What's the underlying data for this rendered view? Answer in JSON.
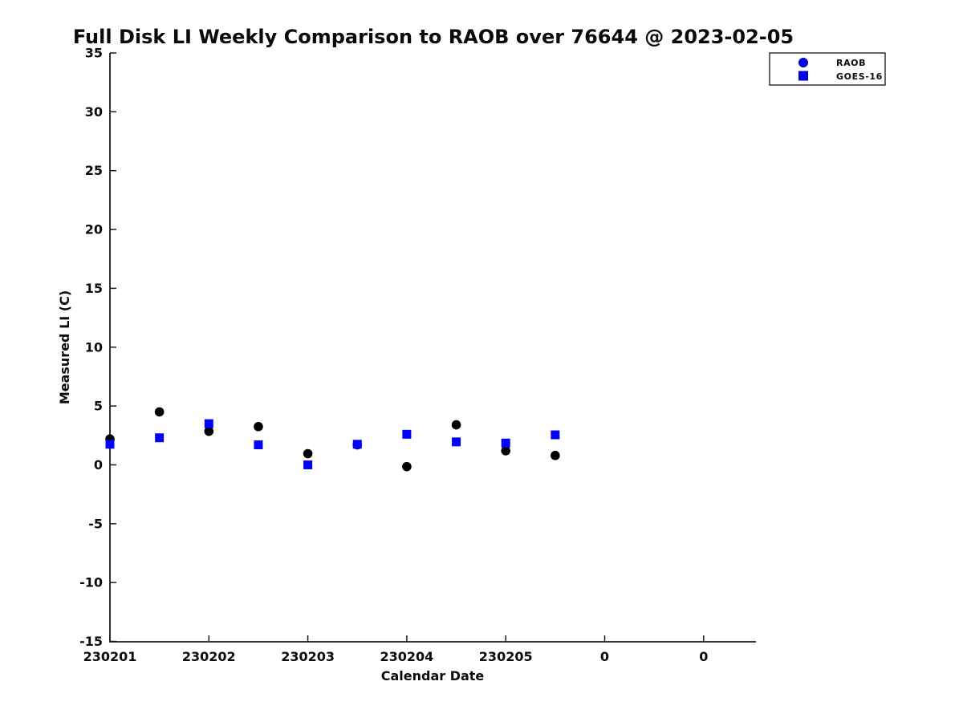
{
  "chart_data": {
    "type": "scatter",
    "title": "Full Disk LI Weekly Comparison to RAOB over 76644 @ 2023-02-05",
    "xlabel": "Calendar Date",
    "ylabel": "Measured LI (C)",
    "x_tick_labels": [
      "230201",
      "230202",
      "230203",
      "230204",
      "230205",
      "0",
      "0"
    ],
    "y_ticks": [
      35,
      30,
      25,
      20,
      15,
      10,
      5,
      0,
      -5,
      -10,
      -15
    ],
    "ylim": [
      -15,
      35
    ],
    "grid": false,
    "legend": {
      "position": "top-right",
      "entries": [
        {
          "label": "RAOB",
          "marker": "circle",
          "color": "#0202f0",
          "edge_color": "#0000b4"
        },
        {
          "label": "GOES-16",
          "marker": "square",
          "color": "#0202f0",
          "edge_color": "#0000b4"
        }
      ]
    },
    "series": [
      {
        "name": "RAOB",
        "marker": "circle",
        "color": "#000000",
        "points": [
          [
            0,
            2.2
          ],
          [
            0.5,
            4.5
          ],
          [
            1,
            2.85
          ],
          [
            1.5,
            3.25
          ],
          [
            2,
            0.95
          ],
          [
            2.5,
            1.7
          ],
          [
            3,
            -0.15
          ],
          [
            3.5,
            3.4
          ],
          [
            4,
            1.2
          ],
          [
            4.5,
            0.8
          ]
        ]
      },
      {
        "name": "GOES-16",
        "marker": "square",
        "color": "#0101ff",
        "points": [
          [
            0,
            1.75
          ],
          [
            0.5,
            2.3
          ],
          [
            1,
            3.5
          ],
          [
            1.5,
            1.7
          ],
          [
            2,
            0.0
          ],
          [
            2.5,
            1.75
          ],
          [
            3,
            2.6
          ],
          [
            3.5,
            1.95
          ],
          [
            4,
            1.85
          ],
          [
            4.5,
            2.55
          ]
        ]
      }
    ]
  }
}
